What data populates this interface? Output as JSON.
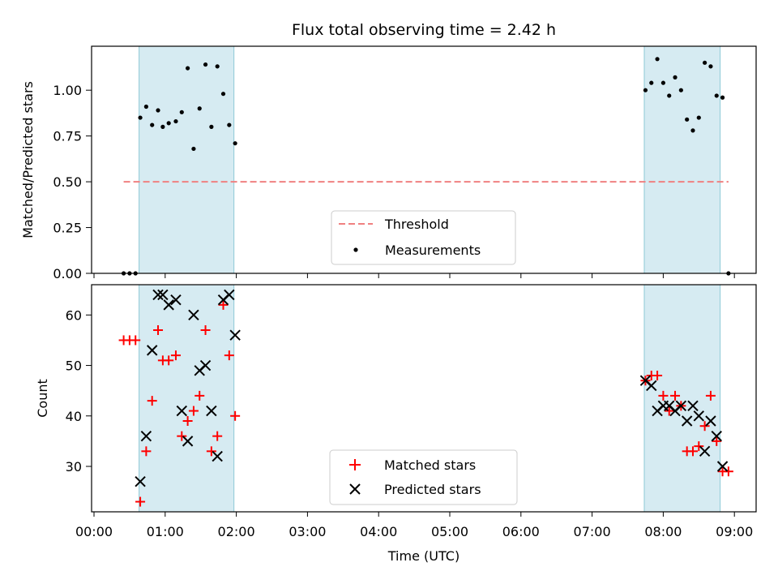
{
  "chart_data": [
    {
      "type": "scatter",
      "title": "Flux total observing time = 2.42 h",
      "xlabel": "",
      "ylabel": "Matched/Predicted stars",
      "xlim": [
        "00:00",
        "09:20"
      ],
      "ylim": [
        0,
        1.24
      ],
      "yticks": [
        "0.00",
        "0.25",
        "0.50",
        "0.75",
        "1.00"
      ],
      "observing_windows": [
        [
          "00:38",
          "01:58"
        ],
        [
          "07:44",
          "08:48"
        ]
      ],
      "threshold": {
        "name": "Threshold",
        "value": 0.5,
        "x_range": [
          "00:25",
          "08:55"
        ],
        "color": "#f08080"
      },
      "series": [
        {
          "name": "Measurements",
          "color": "#000000",
          "points": [
            [
              "00:25",
              0.0
            ],
            [
              "00:30",
              0.0
            ],
            [
              "00:35",
              0.0
            ],
            [
              "00:39",
              0.85
            ],
            [
              "00:44",
              0.91
            ],
            [
              "00:49",
              0.81
            ],
            [
              "00:54",
              0.89
            ],
            [
              "00:58",
              0.8
            ],
            [
              "01:03",
              0.82
            ],
            [
              "01:09",
              0.83
            ],
            [
              "01:14",
              0.88
            ],
            [
              "01:19",
              1.12
            ],
            [
              "01:24",
              0.68
            ],
            [
              "01:29",
              0.9
            ],
            [
              "01:34",
              1.14
            ],
            [
              "01:39",
              0.8
            ],
            [
              "01:44",
              1.13
            ],
            [
              "01:49",
              0.98
            ],
            [
              "01:54",
              0.81
            ],
            [
              "01:59",
              0.71
            ],
            [
              "07:45",
              1.0
            ],
            [
              "07:50",
              1.04
            ],
            [
              "07:55",
              1.17
            ],
            [
              "08:00",
              1.04
            ],
            [
              "08:05",
              0.97
            ],
            [
              "08:10",
              1.07
            ],
            [
              "08:15",
              1.0
            ],
            [
              "08:20",
              0.84
            ],
            [
              "08:25",
              0.78
            ],
            [
              "08:30",
              0.85
            ],
            [
              "08:35",
              1.15
            ],
            [
              "08:40",
              1.13
            ],
            [
              "08:45",
              0.97
            ],
            [
              "08:50",
              0.96
            ],
            [
              "08:55",
              0.0
            ]
          ]
        }
      ],
      "legend": {
        "placement": "lower center",
        "entries": [
          "Threshold",
          "Measurements"
        ]
      }
    },
    {
      "type": "scatter",
      "title": "",
      "xlabel": "Time (UTC)",
      "ylabel": "Count",
      "xlim": [
        "00:00",
        "09:20"
      ],
      "ylim": [
        21,
        66
      ],
      "yticks": [
        "30",
        "40",
        "50",
        "60"
      ],
      "xticks": [
        "00:00",
        "01:00",
        "02:00",
        "03:00",
        "04:00",
        "05:00",
        "06:00",
        "07:00",
        "08:00",
        "09:00"
      ],
      "observing_windows": [
        [
          "00:38",
          "01:58"
        ],
        [
          "07:44",
          "08:48"
        ]
      ],
      "series": [
        {
          "name": "Matched stars",
          "color": "#ff0000",
          "marker": "plus",
          "points": [
            [
              "00:25",
              55
            ],
            [
              "00:30",
              55
            ],
            [
              "00:35",
              55
            ],
            [
              "00:39",
              23
            ],
            [
              "00:44",
              33
            ],
            [
              "00:49",
              43
            ],
            [
              "00:54",
              57
            ],
            [
              "00:58",
              51
            ],
            [
              "01:03",
              51
            ],
            [
              "01:09",
              52
            ],
            [
              "01:14",
              36
            ],
            [
              "01:19",
              39
            ],
            [
              "01:24",
              41
            ],
            [
              "01:29",
              44
            ],
            [
              "01:34",
              57
            ],
            [
              "01:39",
              33
            ],
            [
              "01:44",
              36
            ],
            [
              "01:49",
              62
            ],
            [
              "01:54",
              52
            ],
            [
              "01:59",
              40
            ],
            [
              "07:45",
              47
            ],
            [
              "07:50",
              48
            ],
            [
              "07:55",
              48
            ],
            [
              "08:00",
              44
            ],
            [
              "08:05",
              41
            ],
            [
              "08:10",
              44
            ],
            [
              "08:15",
              42
            ],
            [
              "08:20",
              33
            ],
            [
              "08:25",
              33
            ],
            [
              "08:30",
              34
            ],
            [
              "08:35",
              38
            ],
            [
              "08:40",
              44
            ],
            [
              "08:45",
              35
            ],
            [
              "08:50",
              29
            ],
            [
              "08:55",
              29
            ]
          ]
        },
        {
          "name": "Predicted stars",
          "color": "#000000",
          "marker": "x",
          "points": [
            [
              "00:39",
              27
            ],
            [
              "00:44",
              36
            ],
            [
              "00:49",
              53
            ],
            [
              "00:54",
              64
            ],
            [
              "00:58",
              64
            ],
            [
              "01:03",
              62
            ],
            [
              "01:09",
              63
            ],
            [
              "01:14",
              41
            ],
            [
              "01:19",
              35
            ],
            [
              "01:24",
              60
            ],
            [
              "01:29",
              49
            ],
            [
              "01:34",
              50
            ],
            [
              "01:39",
              41
            ],
            [
              "01:44",
              32
            ],
            [
              "01:49",
              63
            ],
            [
              "01:54",
              64
            ],
            [
              "01:59",
              56
            ],
            [
              "07:45",
              47
            ],
            [
              "07:50",
              46
            ],
            [
              "07:55",
              41
            ],
            [
              "08:00",
              42
            ],
            [
              "08:05",
              42
            ],
            [
              "08:10",
              41
            ],
            [
              "08:15",
              42
            ],
            [
              "08:20",
              39
            ],
            [
              "08:25",
              42
            ],
            [
              "08:30",
              40
            ],
            [
              "08:35",
              33
            ],
            [
              "08:40",
              39
            ],
            [
              "08:45",
              36
            ],
            [
              "08:50",
              30
            ]
          ]
        }
      ],
      "legend": {
        "placement": "lower center",
        "entries": [
          "Matched stars",
          "Predicted stars"
        ]
      }
    }
  ],
  "colors": {
    "window_fill": "#add8e6",
    "window_edge": "#8ec9d6"
  }
}
